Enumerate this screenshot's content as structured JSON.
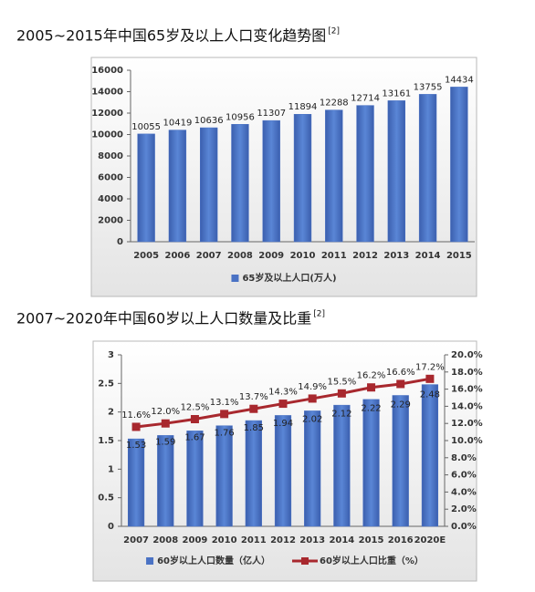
{
  "chart_data": [
    {
      "type": "bar",
      "title": "2005~2015年中国65岁及以上人口变化趋势图",
      "title_ref": "[2]",
      "categories": [
        "2005",
        "2006",
        "2007",
        "2008",
        "2009",
        "2010",
        "2011",
        "2012",
        "2013",
        "2014",
        "2015"
      ],
      "series": [
        {
          "name": "65岁及以上人口(万人)",
          "color": "#4a72c4",
          "values": [
            10055,
            10419,
            10636,
            10956,
            11307,
            11894,
            12288,
            12714,
            13161,
            13755,
            14434
          ]
        }
      ],
      "ylim": [
        0,
        16000
      ],
      "yticks": [
        0,
        2000,
        4000,
        6000,
        8000,
        10000,
        12000,
        14000,
        16000
      ],
      "data_labels": "above",
      "legend": "bottom"
    },
    {
      "type": "bar",
      "title": "2007~2020年中国60岁以上人口数量及比重",
      "title_ref": "[2]",
      "categories": [
        "2007",
        "2008",
        "2009",
        "2010",
        "2011",
        "2012",
        "2013",
        "2014",
        "2015",
        "2016",
        "2020E"
      ],
      "series": [
        {
          "name": "60岁以上人口数量（亿人）",
          "color": "#4a72c4",
          "values": [
            1.53,
            1.59,
            1.67,
            1.76,
            1.85,
            1.94,
            2.02,
            2.12,
            2.22,
            2.29,
            2.48
          ]
        },
        {
          "name": "60岁以上人口比重（%）",
          "color": "#a8282e",
          "type": "line",
          "axis": "y2",
          "values": [
            11.6,
            12.0,
            12.5,
            13.1,
            13.7,
            14.3,
            14.9,
            15.5,
            16.2,
            16.6,
            17.2
          ],
          "value_labels": [
            "11.6%",
            "12.0%",
            "12.5%",
            "13.1%",
            "13.7%",
            "14.3%",
            "14.9%",
            "15.5%",
            "16.2%",
            "16.6%",
            "17.2%"
          ]
        }
      ],
      "ylim": [
        0,
        3
      ],
      "yticks": [
        0,
        0.5,
        1,
        1.5,
        2,
        2.5,
        3
      ],
      "y2lim": [
        0,
        20
      ],
      "y2ticks": [
        {
          "value": 0,
          "label": "0.0%"
        },
        {
          "value": 2,
          "label": "2.0%"
        },
        {
          "value": 4,
          "label": "4.0%"
        },
        {
          "value": 6,
          "label": "6.0%"
        },
        {
          "value": 8,
          "label": "8.0%"
        },
        {
          "value": 10,
          "label": "10.0%"
        },
        {
          "value": 12,
          "label": "12.0%"
        },
        {
          "value": 14,
          "label": "14.0%"
        },
        {
          "value": 16,
          "label": "16.0%"
        },
        {
          "value": 18,
          "label": "18.0%"
        },
        {
          "value": 20,
          "label": "20.0%"
        }
      ],
      "data_labels": "inside",
      "legend": "bottom"
    }
  ]
}
